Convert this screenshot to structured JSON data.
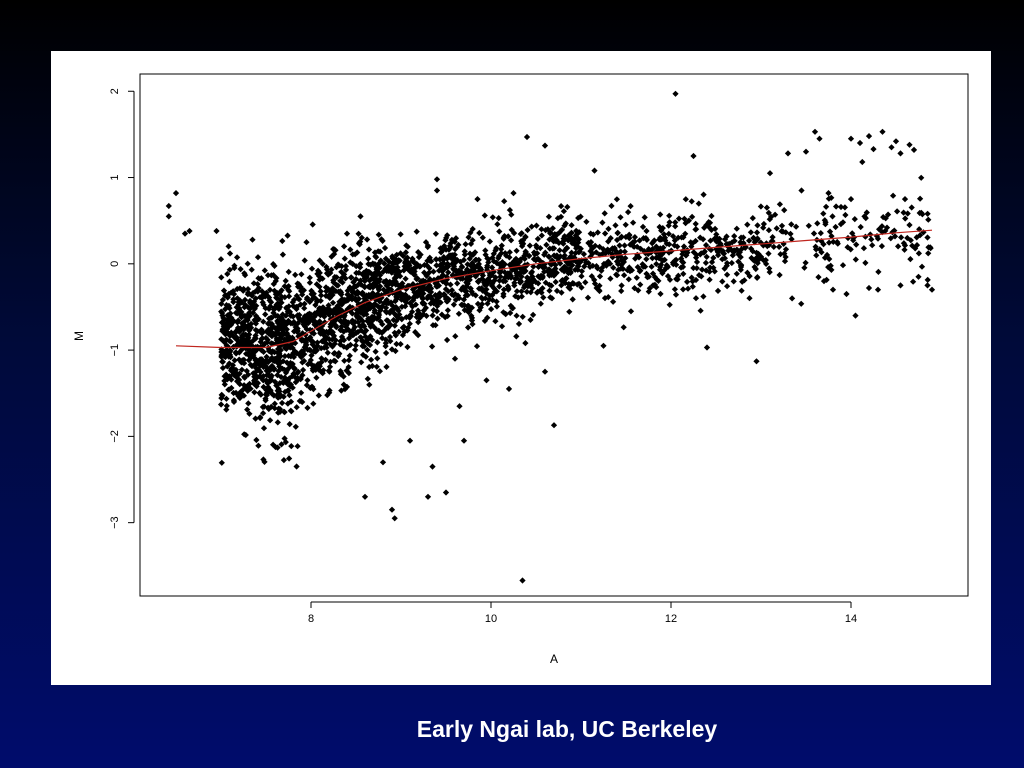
{
  "slide": {
    "caption": "Early Ngai lab, UC Berkeley",
    "background_top": "#000000",
    "background_bottom": "#000c6c"
  },
  "chart_data": {
    "type": "scatter",
    "xlabel": "A",
    "ylabel": "M",
    "xlim": [
      6.1,
      15.3
    ],
    "ylim": [
      -3.85,
      2.2
    ],
    "x_ticks": [
      8,
      10,
      12,
      14
    ],
    "y_ticks": [
      -3,
      -2,
      -1,
      0,
      1,
      2
    ],
    "x_tick_labels": [
      "8",
      "10",
      "12",
      "14"
    ],
    "y_tick_labels": [
      "−3",
      "−2",
      "−1",
      "0",
      "1",
      "2"
    ],
    "grid": false,
    "point_color": "#000000",
    "loess_color": "#c0261f",
    "loess_curve": {
      "x": [
        6.5,
        7.0,
        7.5,
        7.8,
        8.0,
        8.3,
        8.6,
        9.0,
        9.5,
        10.0,
        10.5,
        11.0,
        11.5,
        12.0,
        12.5,
        13.0,
        13.5,
        14.0,
        14.5,
        14.9
      ],
      "y": [
        -0.95,
        -0.97,
        -0.97,
        -0.9,
        -0.78,
        -0.6,
        -0.45,
        -0.3,
        -0.17,
        -0.08,
        0.0,
        0.06,
        0.11,
        0.15,
        0.19,
        0.23,
        0.27,
        0.31,
        0.36,
        0.39
      ]
    },
    "density_bands": [
      {
        "x": [
          7.0,
          7.8
        ],
        "center": [
          -0.9,
          -0.95
        ],
        "spread": [
          0.35,
          0.45
        ],
        "count": 700
      },
      {
        "x": [
          7.8,
          9.0
        ],
        "center": [
          -0.85,
          -0.3
        ],
        "spread": [
          0.4,
          0.3
        ],
        "count": 800
      },
      {
        "x": [
          9.0,
          11.0
        ],
        "center": [
          -0.3,
          0.05
        ],
        "spread": [
          0.28,
          0.25
        ],
        "count": 800
      },
      {
        "x": [
          11.0,
          13.0
        ],
        "center": [
          0.05,
          0.2
        ],
        "spread": [
          0.25,
          0.22
        ],
        "count": 420
      },
      {
        "x": [
          13.0,
          14.9
        ],
        "center": [
          0.2,
          0.35
        ],
        "spread": [
          0.25,
          0.25
        ],
        "count": 160
      }
    ],
    "outliers": [
      [
        6.5,
        0.82
      ],
      [
        6.42,
        0.67
      ],
      [
        6.42,
        0.55
      ],
      [
        6.65,
        0.38
      ],
      [
        6.6,
        0.35
      ],
      [
        6.95,
        0.38
      ],
      [
        12.05,
        1.97
      ],
      [
        10.4,
        1.47
      ],
      [
        10.6,
        1.37
      ],
      [
        12.25,
        1.25
      ],
      [
        11.15,
        1.08
      ],
      [
        10.35,
        -3.67
      ],
      [
        8.93,
        -2.95
      ],
      [
        9.3,
        -2.7
      ],
      [
        9.5,
        -2.65
      ],
      [
        8.9,
        -2.85
      ],
      [
        10.7,
        -1.87
      ],
      [
        9.7,
        -2.05
      ],
      [
        12.4,
        -0.97
      ],
      [
        12.95,
        -1.13
      ],
      [
        13.6,
        1.53
      ],
      [
        13.65,
        1.45
      ],
      [
        14.35,
        1.53
      ],
      [
        14.2,
        1.48
      ],
      [
        14.0,
        1.45
      ],
      [
        14.5,
        1.42
      ],
      [
        14.65,
        1.38
      ],
      [
        14.7,
        1.32
      ],
      [
        14.55,
        1.28
      ],
      [
        14.45,
        1.35
      ],
      [
        14.1,
        1.4
      ],
      [
        14.25,
        1.33
      ],
      [
        13.3,
        1.28
      ],
      [
        13.5,
        1.3
      ],
      [
        13.1,
        1.05
      ],
      [
        13.45,
        0.85
      ],
      [
        13.75,
        0.82
      ],
      [
        14.6,
        0.75
      ],
      [
        14.65,
        0.45
      ],
      [
        14.0,
        0.75
      ],
      [
        14.15,
        0.55
      ],
      [
        14.4,
        0.42
      ],
      [
        14.3,
        -0.3
      ],
      [
        14.55,
        -0.25
      ],
      [
        14.75,
        -0.15
      ],
      [
        14.85,
        -0.25
      ],
      [
        14.9,
        -0.3
      ],
      [
        14.05,
        -0.6
      ],
      [
        14.2,
        -0.28
      ],
      [
        13.8,
        -0.3
      ],
      [
        13.95,
        -0.35
      ],
      [
        13.7,
        -0.2
      ],
      [
        9.4,
        0.98
      ],
      [
        9.4,
        0.85
      ],
      [
        10.25,
        0.82
      ],
      [
        8.55,
        0.55
      ],
      [
        9.85,
        0.75
      ],
      [
        7.35,
        0.28
      ],
      [
        7.95,
        0.25
      ],
      [
        8.4,
        0.35
      ],
      [
        7.1,
        0.12
      ],
      [
        9.6,
        -1.1
      ],
      [
        9.95,
        -1.35
      ],
      [
        10.2,
        -1.45
      ],
      [
        10.6,
        -1.25
      ],
      [
        11.25,
        -0.95
      ],
      [
        9.35,
        -2.35
      ],
      [
        9.65,
        -1.65
      ],
      [
        8.6,
        -2.7
      ],
      [
        8.8,
        -2.3
      ],
      [
        9.1,
        -2.05
      ]
    ]
  }
}
